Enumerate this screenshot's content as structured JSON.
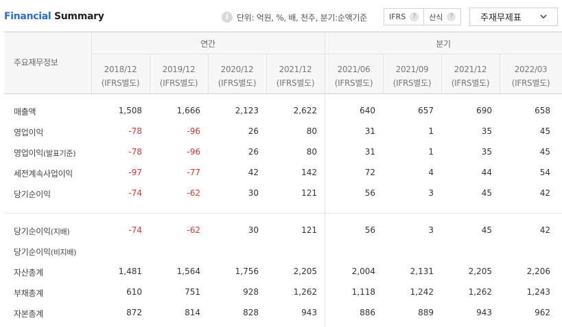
{
  "header": {
    "title_part1": "Financial",
    "title_part2": " Summary",
    "unit_text": "단위: 억원, %, 배, 천주, 분기:순액기준",
    "toggle": [
      {
        "label": "IFRS",
        "help": "?"
      },
      {
        "label": "산식",
        "help": "?"
      }
    ],
    "statement_select": "주재무제표"
  },
  "table": {
    "corner_label": "주요재무정보",
    "group_annual": "연간",
    "group_quarter": "분기",
    "periods": [
      {
        "date": "2018/12",
        "basis": "(IFRS별도)"
      },
      {
        "date": "2019/12",
        "basis": "(IFRS별도)"
      },
      {
        "date": "2020/12",
        "basis": "(IFRS별도)"
      },
      {
        "date": "2021/12",
        "basis": "(IFRS별도)"
      },
      {
        "date": "2021/06",
        "basis": "(IFRS별도)"
      },
      {
        "date": "2021/09",
        "basis": "(IFRS별도)"
      },
      {
        "date": "2021/12",
        "basis": "(IFRS별도)"
      },
      {
        "date": "2022/03",
        "basis": "(IFRS별도)"
      }
    ],
    "rows": [
      {
        "label": "매출액",
        "sub": "",
        "values": [
          "1,508",
          "1,666",
          "2,123",
          "2,622",
          "640",
          "657",
          "690",
          "658"
        ]
      },
      {
        "label": "영업이익",
        "sub": "",
        "values": [
          "-78",
          "-96",
          "26",
          "80",
          "31",
          "1",
          "35",
          "45"
        ]
      },
      {
        "label": "영업이익",
        "sub": "(발표기준)",
        "values": [
          "-78",
          "-96",
          "26",
          "80",
          "31",
          "1",
          "35",
          "45"
        ]
      },
      {
        "label": "세전계속사업이익",
        "sub": "",
        "values": [
          "-97",
          "-77",
          "42",
          "142",
          "72",
          "4",
          "44",
          "54"
        ]
      },
      {
        "label": "당기순이익",
        "sub": "",
        "values": [
          "-74",
          "-62",
          "30",
          "121",
          "56",
          "3",
          "45",
          "42"
        ]
      },
      {
        "label": "당기순이익",
        "sub": "(지배)",
        "values": [
          "-74",
          "-62",
          "30",
          "121",
          "56",
          "3",
          "45",
          "42"
        ]
      },
      {
        "label": "당기순이익",
        "sub": "(비지배)",
        "values": [
          "",
          "",
          "",
          "",
          "",
          "",
          "",
          ""
        ]
      },
      {
        "label": "자산총계",
        "sub": "",
        "values": [
          "1,481",
          "1,564",
          "1,756",
          "2,205",
          "2,004",
          "2,131",
          "2,205",
          "2,206"
        ]
      },
      {
        "label": "부채총계",
        "sub": "",
        "values": [
          "610",
          "751",
          "928",
          "1,262",
          "1,118",
          "1,242",
          "1,262",
          "1,243"
        ]
      },
      {
        "label": "자본총계",
        "sub": "",
        "values": [
          "872",
          "814",
          "828",
          "943",
          "886",
          "889",
          "943",
          "962"
        ]
      }
    ]
  },
  "colors": {
    "accent": "#2a6fd1",
    "negative": "#e0352b",
    "header_bg": "#f7f7f7"
  }
}
